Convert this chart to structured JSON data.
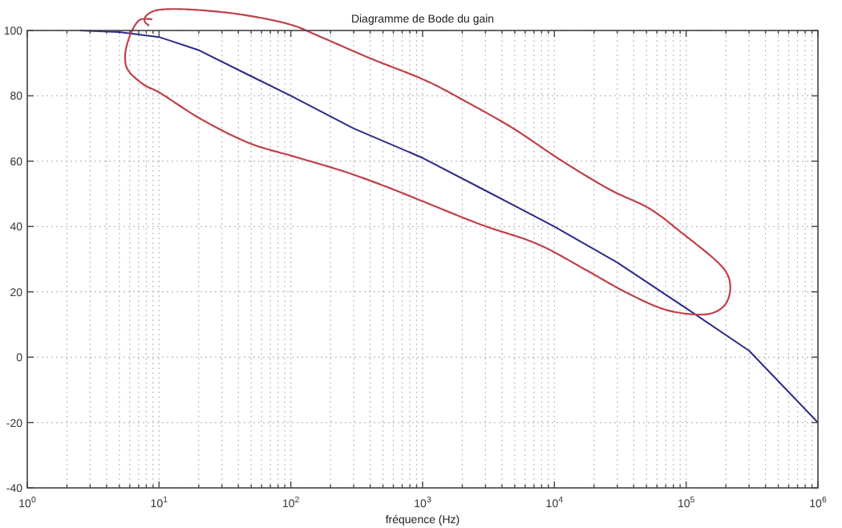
{
  "chart_data": {
    "type": "line",
    "title": "Diagramme de Bode du gain",
    "xlabel": "fréquence (Hz)",
    "log": "x",
    "grid": true,
    "line_style": "solid",
    "marker": "none",
    "xlim": [
      1,
      1000000
    ],
    "ylim": [
      -40,
      100
    ],
    "xticks": [
      {
        "value": 1,
        "label": "10$^{0}$"
      },
      {
        "value": 10,
        "label": "10$^{1}$"
      },
      {
        "value": 100,
        "label": "10$^{2}$"
      },
      {
        "value": 1000,
        "label": "10$^{3}$"
      },
      {
        "value": 10000,
        "label": "10$^{4}$"
      },
      {
        "value": 100000,
        "label": "10$^{5}$"
      },
      {
        "value": 1000000,
        "label": "10$^{6}$"
      }
    ],
    "yticks": [
      -40,
      -20,
      0,
      20,
      40,
      60,
      80,
      100
    ],
    "series": [
      {
        "color": "#2a2a8a",
        "x": [
          2.5,
          5,
          10,
          20,
          50,
          100,
          300,
          1000,
          3000,
          10000,
          30000,
          100000,
          300000,
          1000000
        ],
        "values": [
          100,
          99.5,
          98,
          94,
          86,
          80,
          70,
          61,
          51,
          40,
          29,
          15,
          2,
          -20
        ]
      }
    ]
  }
}
